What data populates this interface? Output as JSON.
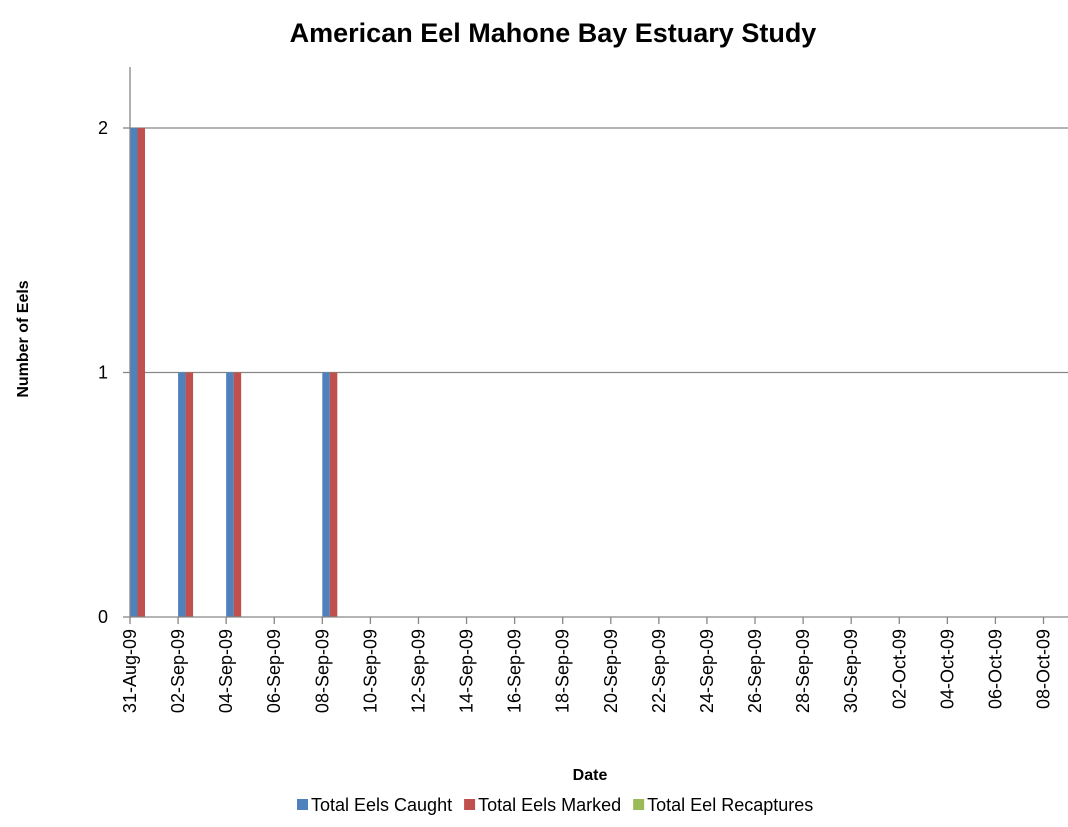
{
  "chart_data": {
    "type": "bar",
    "title": "American Eel Mahone Bay Estuary Study",
    "xlabel": "Date",
    "ylabel": "Number of Eels",
    "ylim": [
      0,
      2
    ],
    "yticks": [
      0,
      1,
      2
    ],
    "grid": true,
    "legend": "bottom",
    "x_start": "2009-08-31",
    "x_end": "2009-10-08",
    "x_tick_labels": [
      "31-Aug-09",
      "02-Sep-09",
      "04-Sep-09",
      "06-Sep-09",
      "08-Sep-09",
      "10-Sep-09",
      "12-Sep-09",
      "14-Sep-09",
      "16-Sep-09",
      "18-Sep-09",
      "20-Sep-09",
      "22-Sep-09",
      "24-Sep-09",
      "26-Sep-09",
      "28-Sep-09",
      "30-Sep-09",
      "02-Oct-09",
      "04-Oct-09",
      "06-Oct-09",
      "08-Oct-09"
    ],
    "series": [
      {
        "name": "Total Eels Caught",
        "color": "#4F81BD",
        "points": [
          {
            "x": "2009-08-31",
            "y": 2
          },
          {
            "x": "2009-09-02",
            "y": 1
          },
          {
            "x": "2009-09-04",
            "y": 1
          },
          {
            "x": "2009-09-08",
            "y": 1
          }
        ]
      },
      {
        "name": "Total Eels Marked",
        "color": "#C0504D",
        "points": [
          {
            "x": "2009-08-31",
            "y": 2
          },
          {
            "x": "2009-09-02",
            "y": 1
          },
          {
            "x": "2009-09-04",
            "y": 1
          },
          {
            "x": "2009-09-08",
            "y": 1
          }
        ]
      },
      {
        "name": "Total Eel Recaptures",
        "color": "#9BBB59",
        "points": []
      }
    ]
  }
}
